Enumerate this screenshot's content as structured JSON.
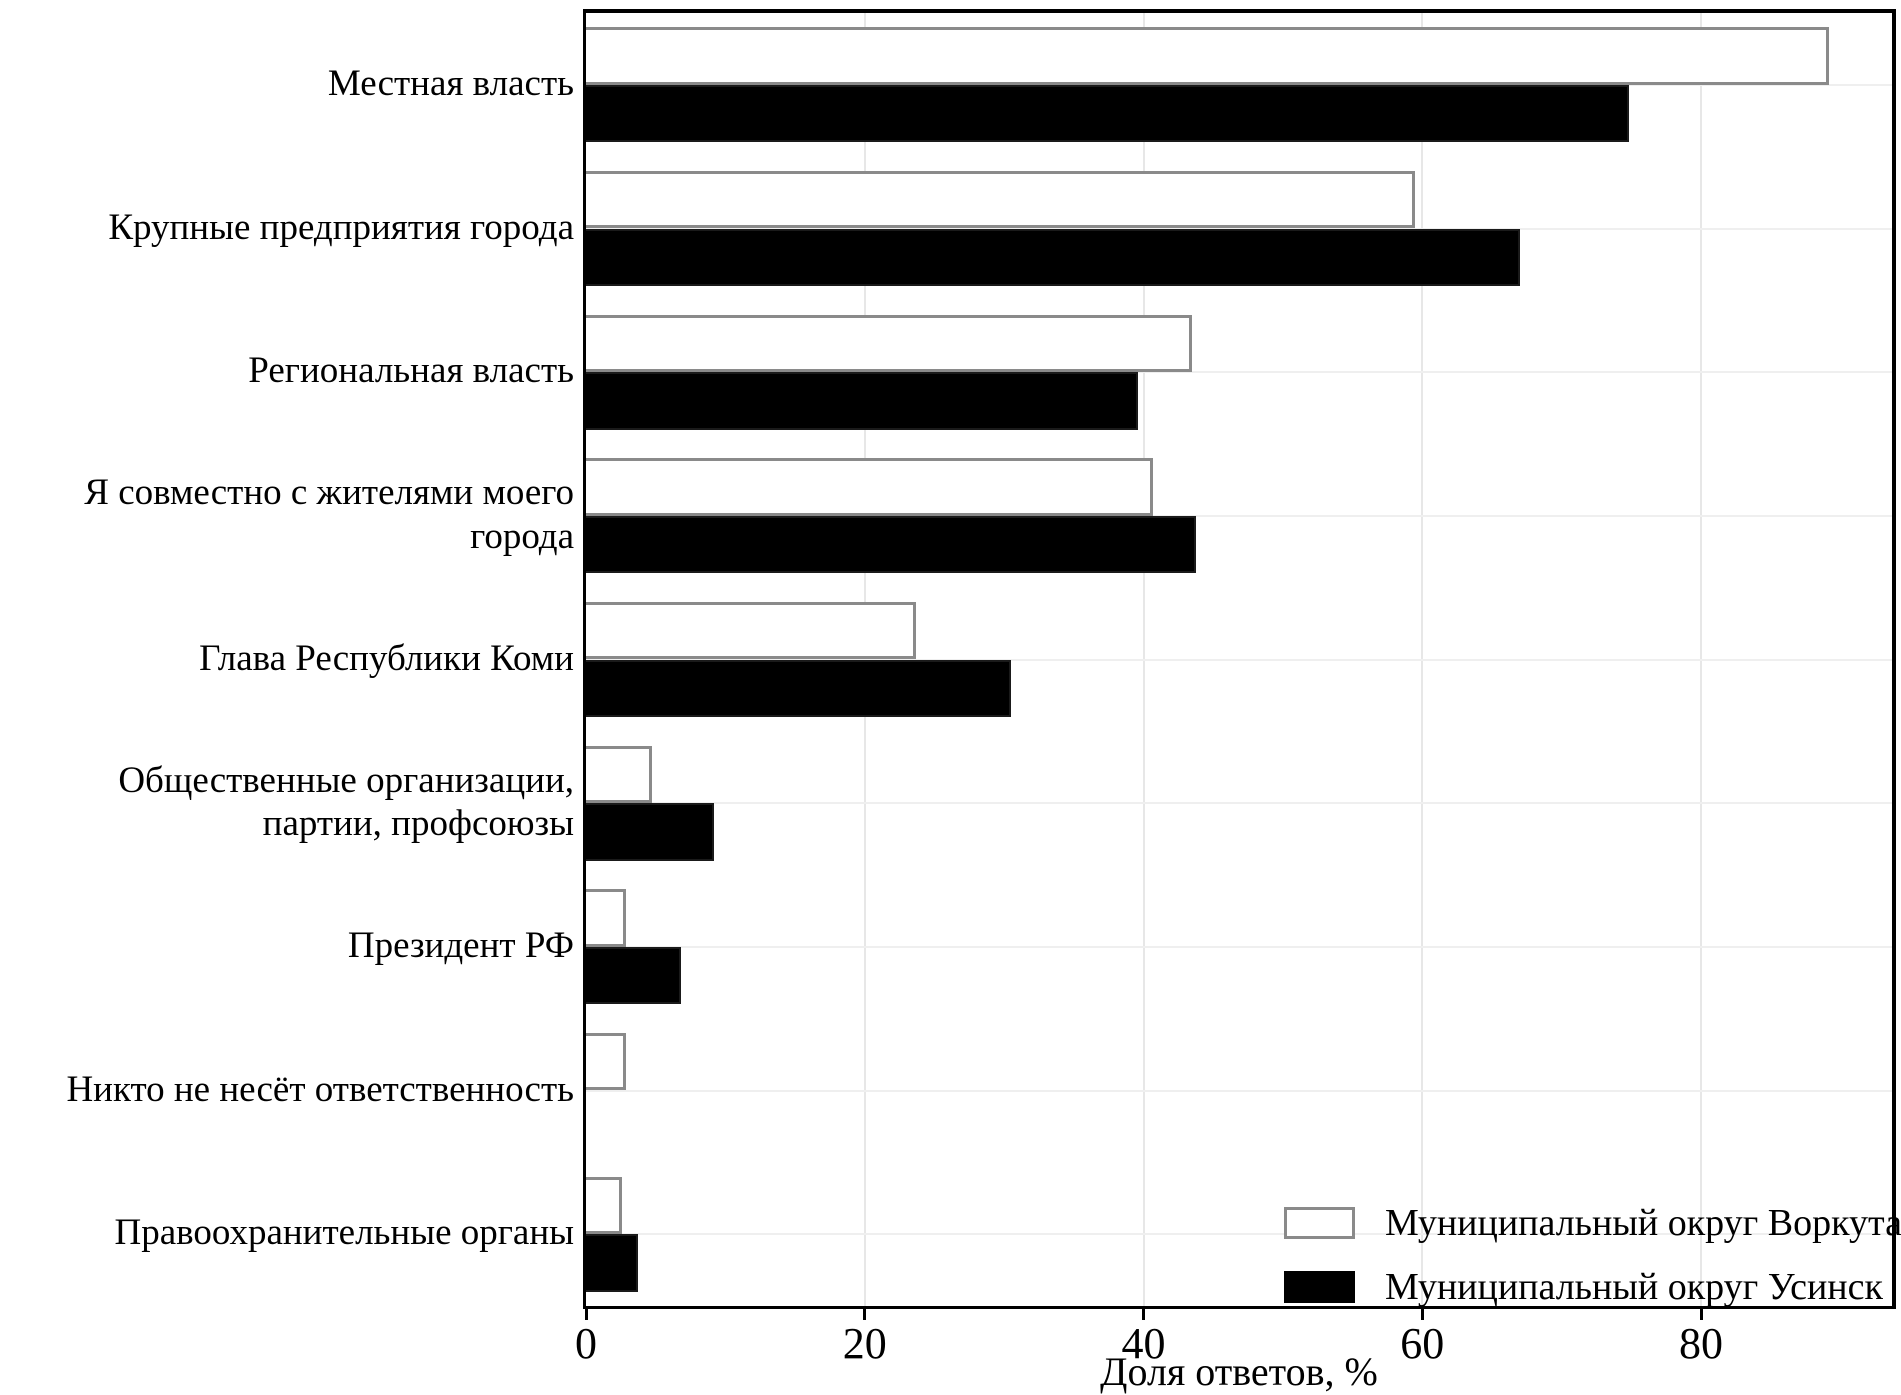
{
  "chart_data": {
    "type": "bar",
    "orientation": "horizontal",
    "title": "",
    "xlabel": "Доля ответов, %",
    "ylabel": "",
    "categories": [
      "Местная власть",
      "Крупные предприятия города",
      "Региональная власть",
      "Я совместно с жителями моего города",
      "Глава Республики Коми",
      "Общественные организации, партии, профсоюзы",
      "Президент РФ",
      "Никто не несёт ответственность",
      "Правоохранительные органы"
    ],
    "series": [
      {
        "name": "Муниципальный округ Воркута",
        "fill": "#ffffff",
        "edge": "#8a8a8a",
        "values": [
          89.2,
          59.5,
          43.5,
          40.7,
          23.7,
          4.7,
          2.9,
          2.9,
          2.6
        ]
      },
      {
        "name": "Муниципальный округ Усинск",
        "fill": "#000000",
        "edge": "#1a1a1a",
        "values": [
          74.8,
          67.0,
          39.6,
          43.8,
          30.5,
          9.2,
          6.8,
          0.0,
          3.7
        ]
      }
    ],
    "xlim": [
      0,
      93.7
    ],
    "xticks": [
      0,
      20,
      40,
      60,
      80
    ],
    "grid": true,
    "legend_position": "lower right"
  },
  "style": {
    "grid_color": "#e7e7e7",
    "spine_color": "#000000",
    "background": "#ffffff"
  }
}
